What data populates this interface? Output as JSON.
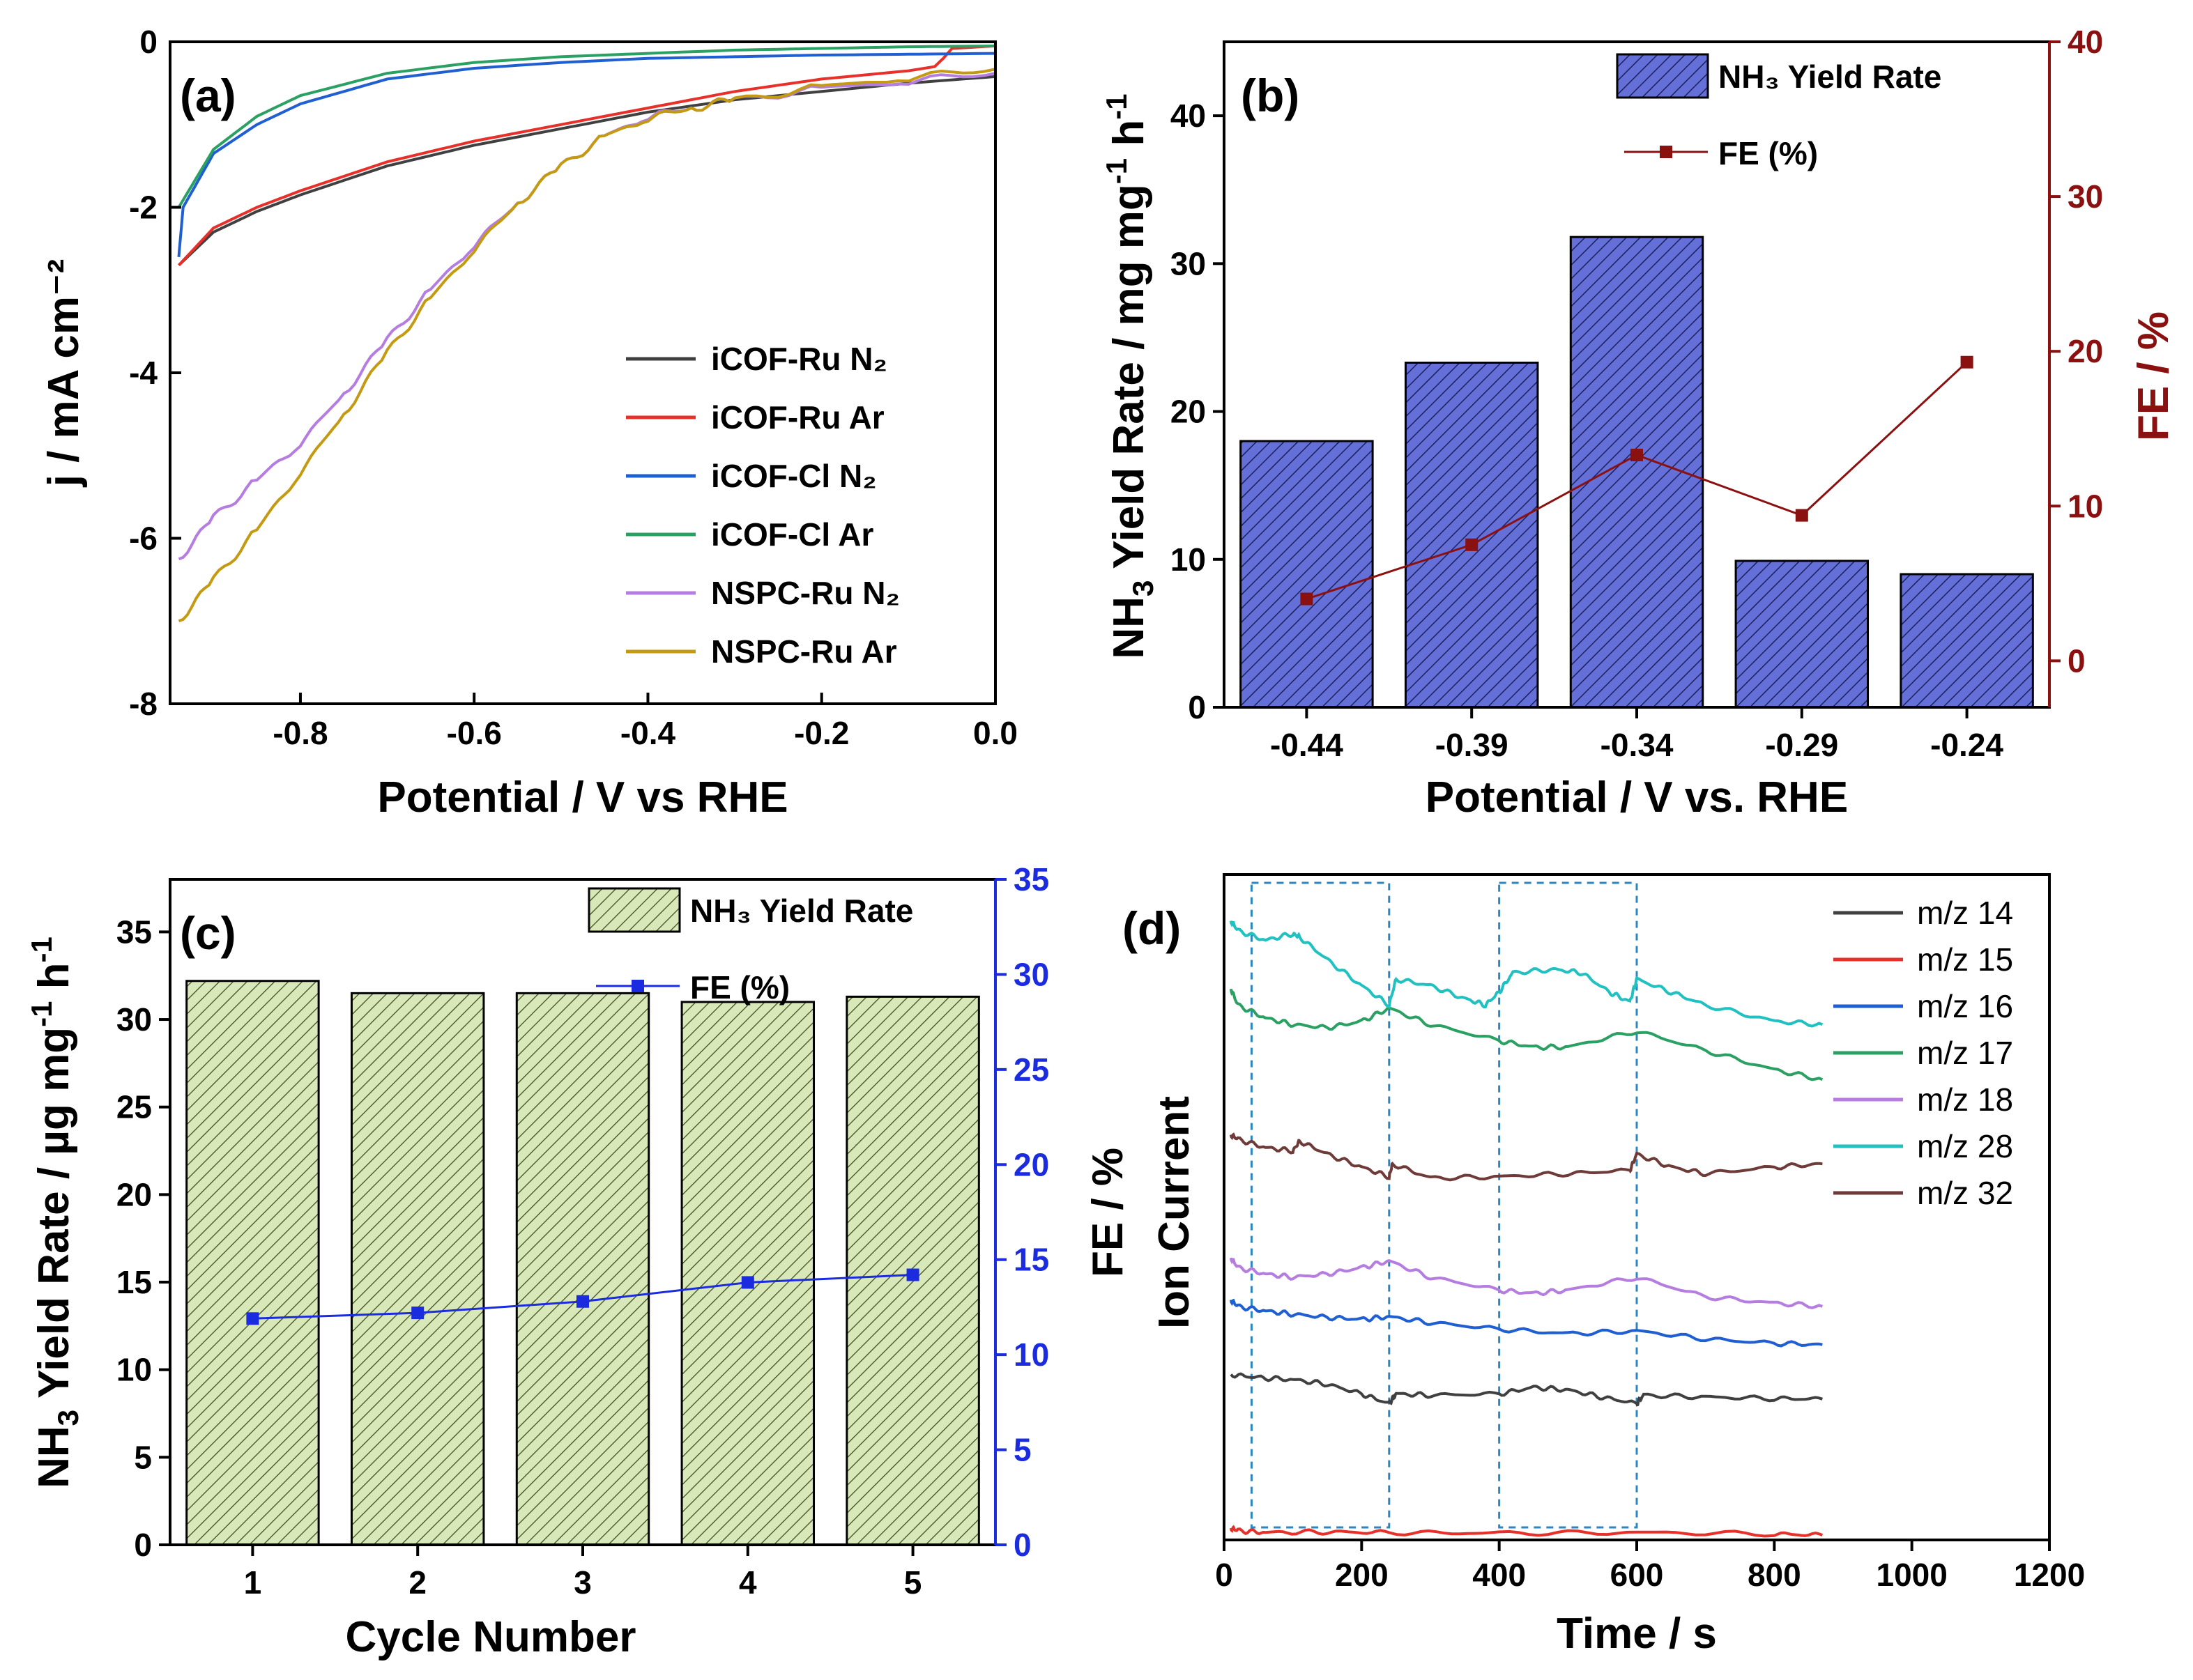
{
  "chart_data": [
    {
      "panel": "(a)",
      "type": "line",
      "xlabel": "Potential / V vs RHE",
      "ylabel": "j / mA cm⁻²",
      "xlim": [
        -0.95,
        0.0
      ],
      "ylim": [
        -8,
        0
      ],
      "xticks": [
        -0.8,
        -0.6,
        -0.4,
        -0.2,
        0.0
      ],
      "xtick_labels": [
        "-0.8",
        "-0.6",
        "-0.4",
        "-0.2",
        "0.0"
      ],
      "yticks": [
        0,
        -2,
        -4,
        -6,
        -8
      ],
      "ytick_labels": [
        "0",
        "-2",
        "-4",
        "-6",
        "-8"
      ],
      "legend_position": "right-middle",
      "series": [
        {
          "name": "iCOF-Ru N₂",
          "color": "#404040",
          "x": [
            -0.94,
            -0.9,
            -0.85,
            -0.8,
            -0.7,
            -0.6,
            -0.5,
            -0.4,
            -0.3,
            -0.2,
            -0.1,
            0.0
          ],
          "y": [
            -2.7,
            -2.3,
            -2.05,
            -1.85,
            -1.5,
            -1.25,
            -1.05,
            -0.85,
            -0.7,
            -0.6,
            -0.5,
            -0.42
          ]
        },
        {
          "name": "iCOF-Ru Ar",
          "color": "#e8302a",
          "x": [
            -0.94,
            -0.9,
            -0.85,
            -0.8,
            -0.7,
            -0.6,
            -0.5,
            -0.4,
            -0.3,
            -0.2,
            -0.1,
            -0.07,
            -0.06,
            -0.05,
            0.0
          ],
          "y": [
            -2.7,
            -2.25,
            -2.0,
            -1.8,
            -1.45,
            -1.2,
            -1.0,
            -0.8,
            -0.6,
            -0.45,
            -0.35,
            -0.3,
            -0.2,
            -0.08,
            -0.05
          ]
        },
        {
          "name": "iCOF-Cl N₂",
          "color": "#1f5fd1",
          "x": [
            -0.94,
            -0.935,
            -0.9,
            -0.85,
            -0.8,
            -0.7,
            -0.6,
            -0.5,
            -0.4,
            -0.3,
            -0.2,
            -0.1,
            0.0
          ],
          "y": [
            -2.6,
            -2.0,
            -1.35,
            -1.0,
            -0.75,
            -0.45,
            -0.32,
            -0.25,
            -0.2,
            -0.18,
            -0.16,
            -0.15,
            -0.14
          ]
        },
        {
          "name": "iCOF-Cl Ar",
          "color": "#2aa063",
          "x": [
            -0.94,
            -0.9,
            -0.85,
            -0.8,
            -0.7,
            -0.6,
            -0.5,
            -0.4,
            -0.3,
            -0.2,
            -0.1,
            0.0
          ],
          "y": [
            -2.0,
            -1.3,
            -0.9,
            -0.65,
            -0.38,
            -0.25,
            -0.18,
            -0.14,
            -0.1,
            -0.08,
            -0.06,
            -0.05
          ]
        },
        {
          "name": "NSPC-Ru N₂",
          "color": "#b57de0",
          "x": [
            -0.94,
            -0.9,
            -0.85,
            -0.8,
            -0.75,
            -0.7,
            -0.65,
            -0.6,
            -0.55,
            -0.5,
            -0.45,
            -0.4,
            -0.35,
            -0.3,
            -0.2,
            -0.1,
            0.0
          ],
          "y": [
            -6.25,
            -5.75,
            -5.3,
            -4.85,
            -4.25,
            -3.6,
            -3.0,
            -2.45,
            -1.95,
            -1.5,
            -1.15,
            -0.9,
            -0.8,
            -0.7,
            -0.57,
            -0.47,
            -0.38
          ]
        },
        {
          "name": "NSPC-Ru Ar",
          "color": "#c49a12",
          "x": [
            -0.94,
            -0.9,
            -0.85,
            -0.8,
            -0.75,
            -0.7,
            -0.65,
            -0.6,
            -0.55,
            -0.5,
            -0.45,
            -0.4,
            -0.35,
            -0.3,
            -0.2,
            -0.1,
            0.0
          ],
          "y": [
            -7.0,
            -6.5,
            -5.9,
            -5.2,
            -4.5,
            -3.75,
            -3.1,
            -2.5,
            -1.95,
            -1.5,
            -1.15,
            -0.92,
            -0.8,
            -0.7,
            -0.55,
            -0.43,
            -0.33
          ]
        }
      ]
    },
    {
      "panel": "(b)",
      "type": "bar",
      "xlabel": "Potential / V vs. RHE",
      "ylabel_main": "NH",
      "ylabel_sub": "3",
      "ylabel_rest": " Yield Rate / mg mg",
      "ylabel_sup1": "-1",
      "ylabel_h": " h",
      "ylabel_sup2": "-1",
      "y2label": "FE / %",
      "categories": [
        "-0.44",
        "-0.39",
        "-0.34",
        "-0.29",
        "-0.24"
      ],
      "series": [
        {
          "name": "NH₃ Yield Rate",
          "values": [
            18.0,
            23.3,
            31.8,
            9.9,
            9.0
          ],
          "color": "#6470d8"
        },
        {
          "name": "FE (%)",
          "axis": "right",
          "values": [
            4.0,
            7.5,
            13.3,
            9.4,
            19.3
          ],
          "color": "#8b1010"
        }
      ],
      "ylim": [
        0,
        45
      ],
      "yticks": [
        0,
        10,
        20,
        30,
        40
      ],
      "ytick_labels": [
        "0",
        "10",
        "20",
        "30",
        "40"
      ],
      "y2lim": [
        -3,
        40
      ],
      "y2ticks": [
        0,
        10,
        20,
        30,
        40
      ],
      "y2tick_labels": [
        "0",
        "10",
        "20",
        "30",
        "40"
      ],
      "legend_bar_label": "NH₃ Yield Rate",
      "legend_line_label": "FE (%)",
      "legend_position": "top-right"
    },
    {
      "panel": "(c)",
      "type": "bar",
      "xlabel": "Cycle Number",
      "ylabel_main": "NH",
      "ylabel_sub": "3",
      "ylabel_rest": " Yield Rate / µg mg",
      "ylabel_sup1": "-1",
      "ylabel_h": " h",
      "ylabel_sup2": "-1",
      "y2label": "FE / %",
      "categories": [
        "1",
        "2",
        "3",
        "4",
        "5"
      ],
      "series": [
        {
          "name": "NH₃ Yield Rate",
          "values": [
            32.2,
            31.5,
            31.5,
            31.0,
            31.3
          ],
          "color": "#d9e8b8"
        },
        {
          "name": "FE (%)",
          "axis": "right",
          "values": [
            11.9,
            12.2,
            12.8,
            13.8,
            14.2
          ],
          "color": "#1a2be0"
        }
      ],
      "ylim": [
        0,
        38
      ],
      "yticks": [
        0,
        5,
        10,
        15,
        20,
        25,
        30,
        35
      ],
      "ytick_labels": [
        "0",
        "5",
        "10",
        "15",
        "20",
        "25",
        "30",
        "35"
      ],
      "y2lim": [
        0,
        35
      ],
      "y2ticks": [
        0,
        5,
        10,
        15,
        20,
        25,
        30,
        35
      ],
      "y2tick_labels": [
        "0",
        "5",
        "10",
        "15",
        "20",
        "25",
        "30",
        "35"
      ],
      "legend_bar_label": "NH₃ Yield Rate",
      "legend_line_label": "FE (%)",
      "legend_position": "top-right"
    },
    {
      "panel": "(d)",
      "type": "line",
      "xlabel": "Time / s",
      "ylabel": "Ion Current",
      "ylabel2": "FE / %",
      "xlim": [
        0,
        1200
      ],
      "xticks": [
        0,
        200,
        400,
        600,
        800,
        1000,
        1200
      ],
      "xtick_labels": [
        "0",
        "200",
        "400",
        "600",
        "800",
        "1000",
        "1200"
      ],
      "ylim": [
        0,
        100
      ],
      "legend_position": "top-right",
      "highlight_windows": [
        [
          40,
          240
        ],
        [
          400,
          600
        ]
      ],
      "series": [
        {
          "name": "m/z 14",
          "color": "#404040",
          "x": [
            10,
            50,
            100,
            150,
            200,
            240,
            250,
            300,
            400,
            450,
            500,
            550,
            600,
            610,
            700,
            800,
            870
          ],
          "y": [
            25,
            24.5,
            24.2,
            23.5,
            22,
            20.5,
            22,
            21.8,
            22,
            23,
            22.6,
            21.5,
            20.5,
            21.8,
            21.5,
            21.3,
            21.2
          ]
        },
        {
          "name": "m/z 15",
          "color": "#e8302a",
          "x": [
            10,
            20,
            60,
            150,
            240,
            400,
            600,
            800,
            870
          ],
          "y": [
            1.3,
            0.9,
            0.6,
            0.7,
            0.6,
            0.5,
            0.6,
            0.4,
            0.2
          ]
        },
        {
          "name": "m/z 16",
          "color": "#1f5fd1",
          "x": [
            10,
            20,
            60,
            100,
            150,
            200,
            240,
            300,
            400,
            500,
            600,
            700,
            800,
            870
          ],
          "y": [
            36.5,
            35.5,
            34.8,
            34.3,
            33.8,
            33.5,
            33.9,
            33,
            32,
            31.3,
            31.7,
            30.5,
            29.8,
            29.6
          ]
        },
        {
          "name": "m/z 17",
          "color": "#2aa063",
          "x": [
            10,
            20,
            60,
            100,
            150,
            200,
            240,
            300,
            400,
            450,
            500,
            600,
            700,
            800,
            870
          ],
          "y": [
            84.5,
            82,
            80,
            79,
            78.5,
            79.5,
            81.5,
            79,
            76.5,
            75.5,
            75.5,
            78,
            75,
            72,
            70.5
          ]
        },
        {
          "name": "m/z 18",
          "color": "#b57de0",
          "x": [
            10,
            20,
            60,
            100,
            150,
            200,
            240,
            300,
            400,
            450,
            500,
            600,
            700,
            800,
            870
          ],
          "y": [
            43,
            41.5,
            40.5,
            40,
            40.5,
            41.5,
            42.5,
            40,
            38,
            37.5,
            38,
            40,
            37,
            36,
            35.5
          ]
        },
        {
          "name": "m/z 28",
          "color": "#21c1c1",
          "x": [
            10,
            20,
            60,
            100,
            110,
            150,
            200,
            240,
            250,
            300,
            350,
            380,
            400,
            420,
            480,
            520,
            560,
            590,
            600,
            650,
            700,
            800,
            870
          ],
          "y": [
            95,
            93.5,
            92,
            93,
            92.5,
            89,
            85,
            82,
            86,
            85,
            83,
            82,
            84,
            87,
            87.5,
            87,
            84,
            82.5,
            86,
            84,
            82,
            79.5,
            79
          ]
        },
        {
          "name": "m/z 32",
          "color": "#6e3b38",
          "x": [
            10,
            20,
            60,
            100,
            110,
            150,
            200,
            240,
            245,
            300,
            400,
            500,
            590,
            600,
            650,
            700,
            800,
            870
          ],
          "y": [
            62,
            61.3,
            60,
            59.5,
            61,
            59,
            57,
            55.5,
            57.5,
            55.3,
            55.5,
            56,
            56.5,
            59,
            57,
            56,
            57,
            57.5
          ]
        }
      ]
    }
  ]
}
